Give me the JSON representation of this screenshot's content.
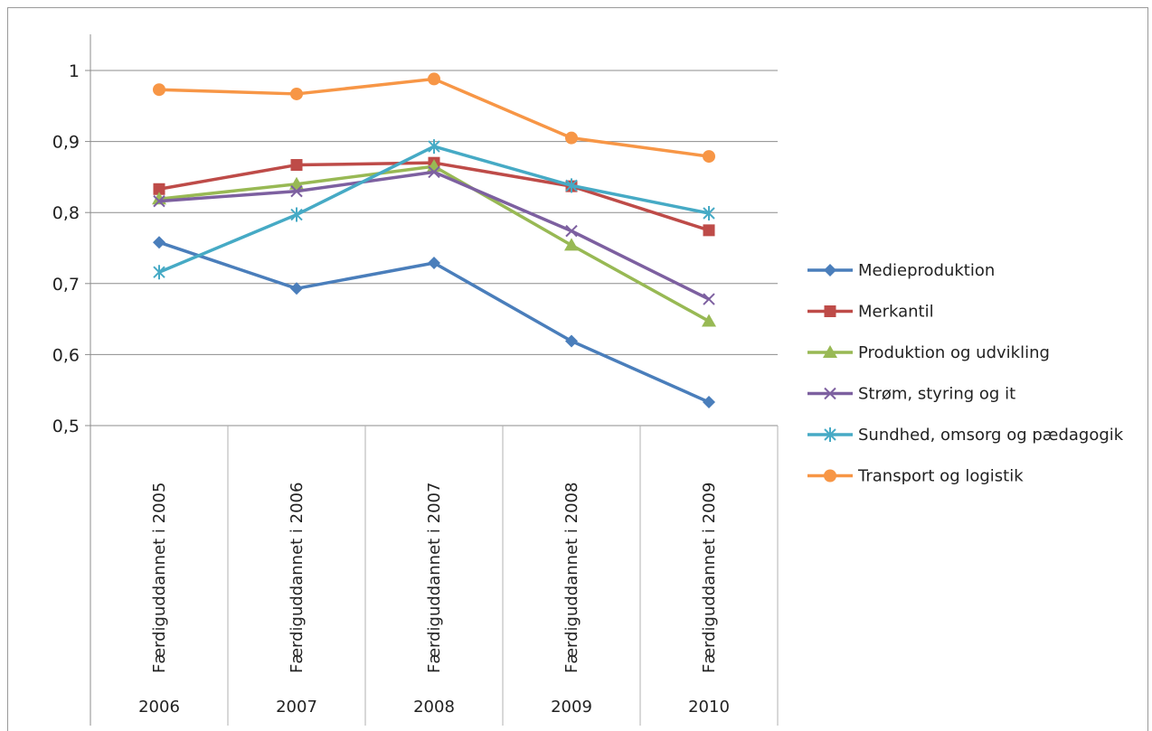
{
  "chart_data": {
    "type": "line",
    "categories": [
      {
        "label": "Færdiguddannet i 2005",
        "year": "2006"
      },
      {
        "label": "Færdiguddannet i 2006",
        "year": "2007"
      },
      {
        "label": "Færdiguddannet i 2007",
        "year": "2008"
      },
      {
        "label": "Færdiguddannet i 2008",
        "year": "2009"
      },
      {
        "label": "Færdiguddannet i 2009",
        "year": "2010"
      }
    ],
    "y_ticks": [
      "0,5",
      "0,6",
      "0,7",
      "0,8",
      "0,9",
      "1"
    ],
    "ylim": [
      0.5,
      1.05
    ],
    "grid": true,
    "legend_position": "right",
    "series": [
      {
        "name": "Medieproduktion",
        "color": "#4a7ebb",
        "marker": "diamond",
        "values": [
          0.758,
          0.693,
          0.729,
          0.619,
          0.533
        ]
      },
      {
        "name": "Merkantil",
        "color": "#be4b48",
        "marker": "square",
        "values": [
          0.833,
          0.867,
          0.87,
          0.837,
          0.775
        ]
      },
      {
        "name": "Produktion og udvikling",
        "color": "#98b954",
        "marker": "triangle",
        "values": [
          0.819,
          0.84,
          0.865,
          0.754,
          0.647
        ]
      },
      {
        "name": "Strøm, styring og it",
        "color": "#7d60a0",
        "marker": "x",
        "values": [
          0.816,
          0.83,
          0.857,
          0.774,
          0.678
        ]
      },
      {
        "name": "Sundhed, omsorg og pædagogik",
        "color": "#46aac5",
        "marker": "star",
        "values": [
          0.716,
          0.797,
          0.893,
          0.838,
          0.799
        ]
      },
      {
        "name": "Transport og logistik",
        "color": "#f79646",
        "marker": "circle",
        "values": [
          0.973,
          0.967,
          0.988,
          0.905,
          0.879
        ]
      }
    ]
  }
}
